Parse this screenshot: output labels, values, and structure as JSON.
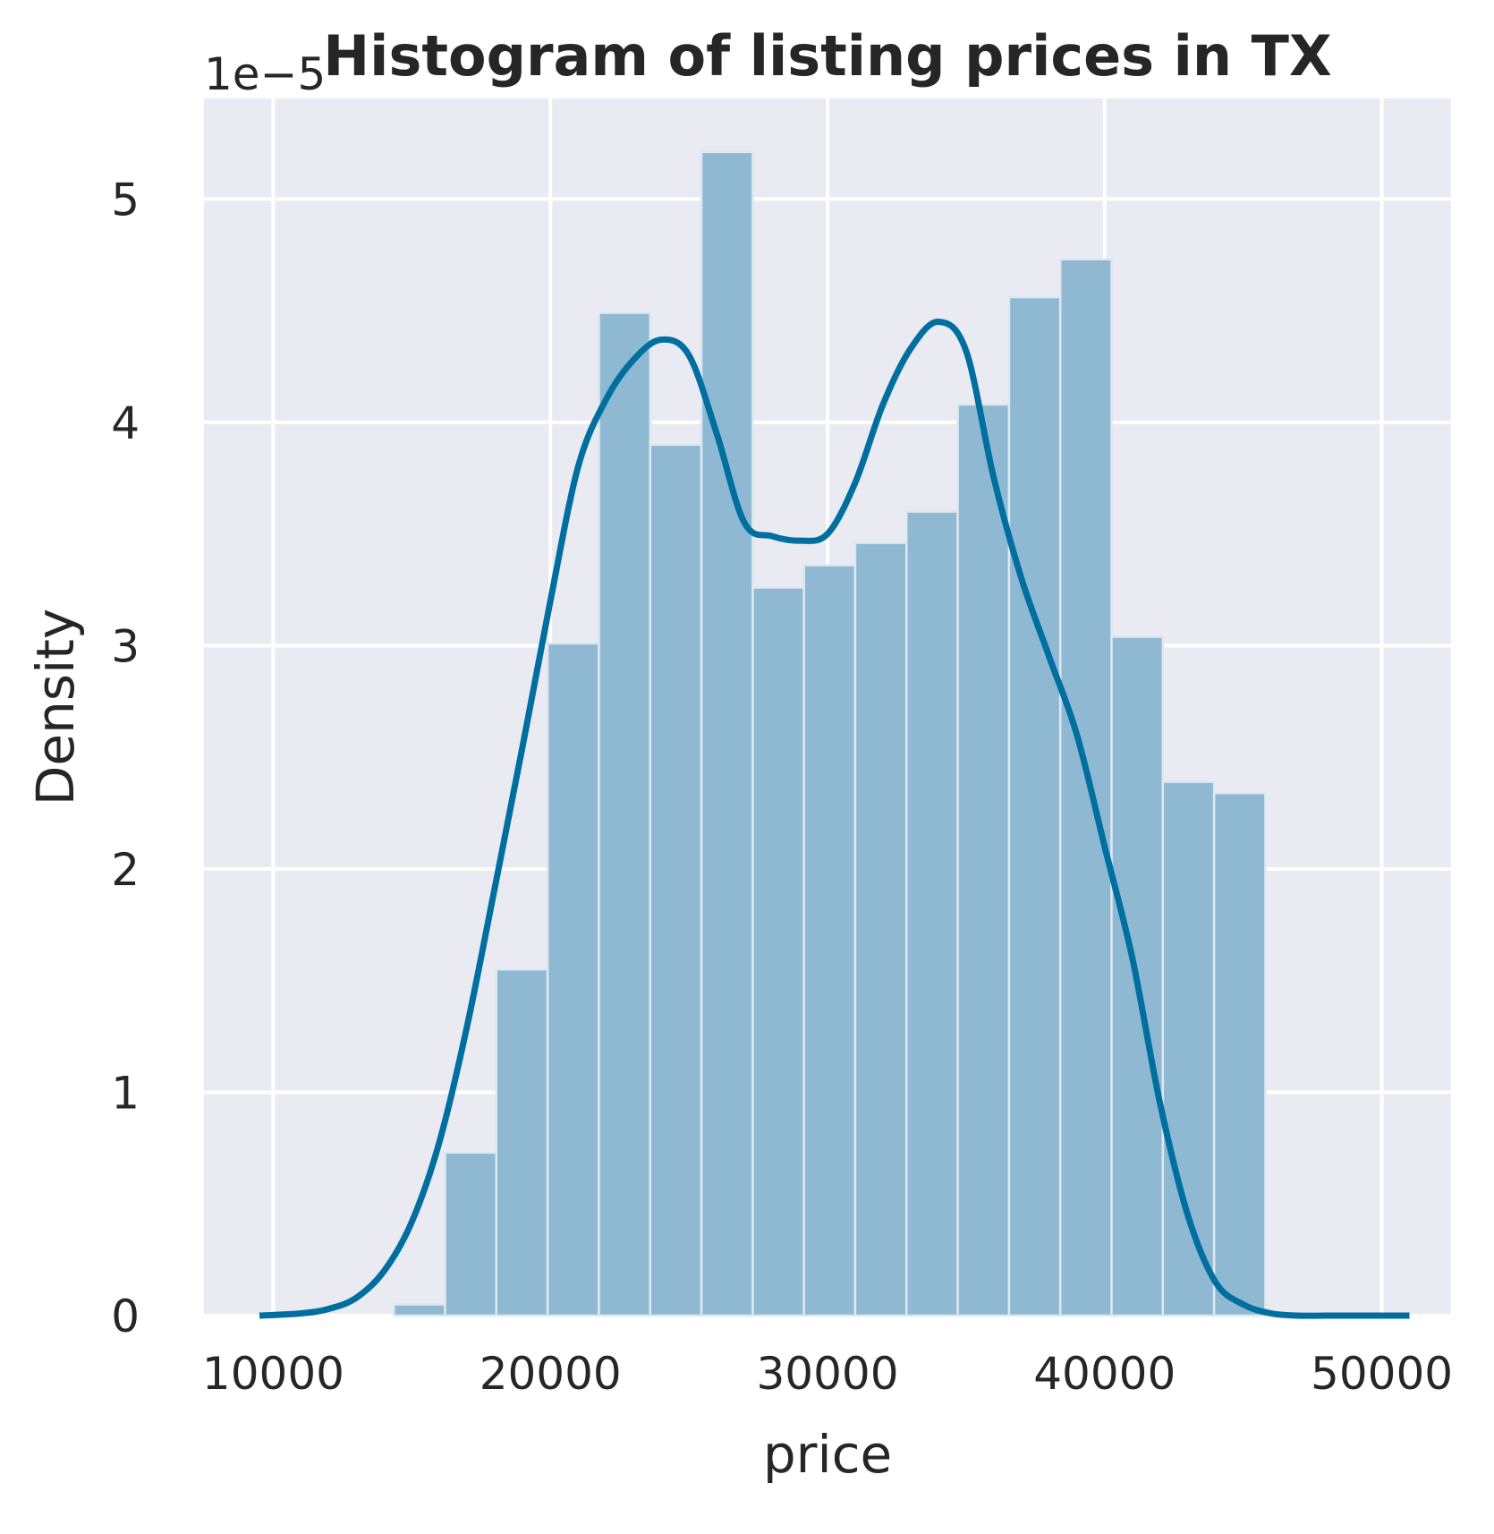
{
  "chart_data": {
    "type": "bar",
    "subtype": "histogram with kde",
    "title": "Histogram of listing prices in TX",
    "xlabel": "price",
    "ylabel": "Density",
    "y_offset_label": "1e−5",
    "xlim": [
      7500,
      52500
    ],
    "ylim": [
      0,
      5.45
    ],
    "y_scale_note": "values in units of 1e-5",
    "xticks": [
      10000,
      20000,
      30000,
      40000,
      50000
    ],
    "xtick_labels": [
      "10000",
      "20000",
      "30000",
      "40000",
      "50000"
    ],
    "yticks": [
      0,
      1,
      2,
      3,
      4,
      5
    ],
    "ytick_labels": [
      "0",
      "1",
      "2",
      "3",
      "4",
      "5"
    ],
    "grid": true,
    "bin_edges": [
      14350,
      16200,
      18050,
      19900,
      21750,
      23600,
      25450,
      27300,
      29150,
      31000,
      32850,
      34700,
      36550,
      38400,
      40250,
      42100,
      43950,
      45800
    ],
    "density": [
      0.05,
      0.73,
      1.55,
      3.01,
      4.49,
      3.9,
      5.21,
      3.26,
      3.36,
      3.46,
      3.6,
      4.08,
      4.56,
      4.73,
      3.04,
      2.39,
      2.34
    ],
    "kde": {
      "x": [
        9500,
        11000,
        12000,
        13000,
        14000,
        15000,
        16000,
        17000,
        18000,
        19000,
        20000,
        21000,
        22000,
        23000,
        24000,
        25000,
        26000,
        27000,
        28000,
        29000,
        30000,
        31000,
        32000,
        33000,
        34000,
        35000,
        36000,
        37000,
        38000,
        39000,
        40000,
        41000,
        42000,
        43000,
        44000,
        45000,
        46000,
        47000,
        48000,
        49000,
        50000,
        51000
      ],
      "y": [
        0.0,
        0.01,
        0.03,
        0.08,
        0.2,
        0.42,
        0.78,
        1.3,
        1.92,
        2.55,
        3.2,
        3.8,
        4.1,
        4.28,
        4.37,
        4.3,
        3.95,
        3.55,
        3.49,
        3.47,
        3.5,
        3.73,
        4.08,
        4.33,
        4.45,
        4.32,
        3.75,
        3.3,
        2.95,
        2.6,
        2.1,
        1.6,
        0.95,
        0.45,
        0.15,
        0.05,
        0.01,
        0.0,
        0.0,
        0.0,
        0.0,
        0.0
      ]
    },
    "bar_color": "#8fb9d3",
    "line_color": "#006f9f",
    "background_color": "#eaeaf2",
    "grid_color": "#ffffff"
  }
}
